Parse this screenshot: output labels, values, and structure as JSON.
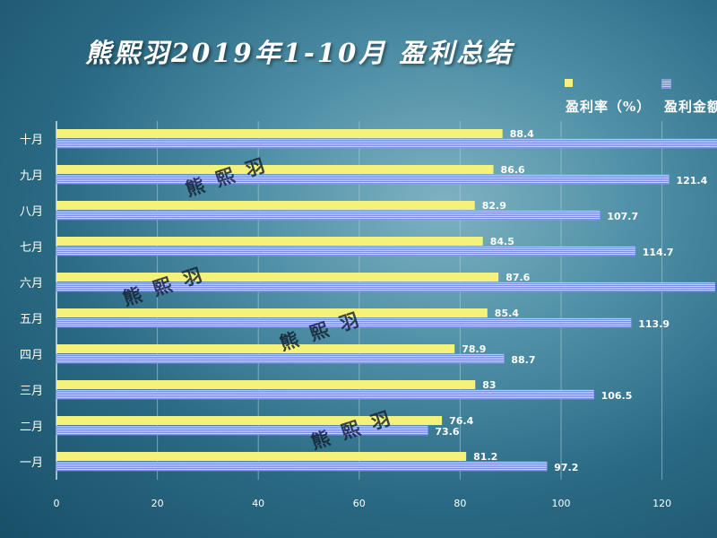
{
  "chart_data": {
    "type": "bar",
    "orientation": "horizontal",
    "title": "熊熙羽2019年1-10月 盈利总结",
    "categories": [
      "一月",
      "二月",
      "三月",
      "四月",
      "五月",
      "六月",
      "七月",
      "八月",
      "九月",
      "十月"
    ],
    "series": [
      {
        "name": "盈利率（%）",
        "values": [
          81.2,
          76.4,
          83,
          78.9,
          85.4,
          87.6,
          84.5,
          82.9,
          86.6,
          88.4
        ],
        "color": "#f4f27a",
        "value_labels": [
          "81.2",
          "76.4",
          "83",
          "78.9",
          "85.4",
          "87.6",
          "84.5",
          "82.9",
          "86.6",
          "88.4"
        ]
      },
      {
        "name": "盈利金额",
        "values": [
          97.2,
          73.6,
          106.5,
          88.7,
          113.9,
          130.5,
          114.7,
          107.7,
          121.4,
          131.0
        ],
        "color": "#7a8fe6",
        "value_labels": [
          "97.2",
          "73.6",
          "106.5",
          "88.7",
          "113.9",
          "",
          "114.7",
          "107.7",
          "121.4",
          ""
        ]
      }
    ],
    "xlim": [
      0,
      130
    ],
    "x_ticks": [
      0,
      20,
      40,
      60,
      80,
      100,
      120
    ],
    "grid": true,
    "legend_position": "top-right"
  },
  "legend": {
    "rate_label": "盈利率（%）",
    "amount_label": "盈利金额"
  },
  "watermarks": [
    "熊熙羽",
    "熊熙羽",
    "熊熙羽",
    "熊熙羽"
  ],
  "colors": {
    "rate_bar": "#f4f27a",
    "amount_bar": "#7a8fe6",
    "amount_stripe": "#c7d3fa",
    "grid": "#a9cfdc"
  }
}
